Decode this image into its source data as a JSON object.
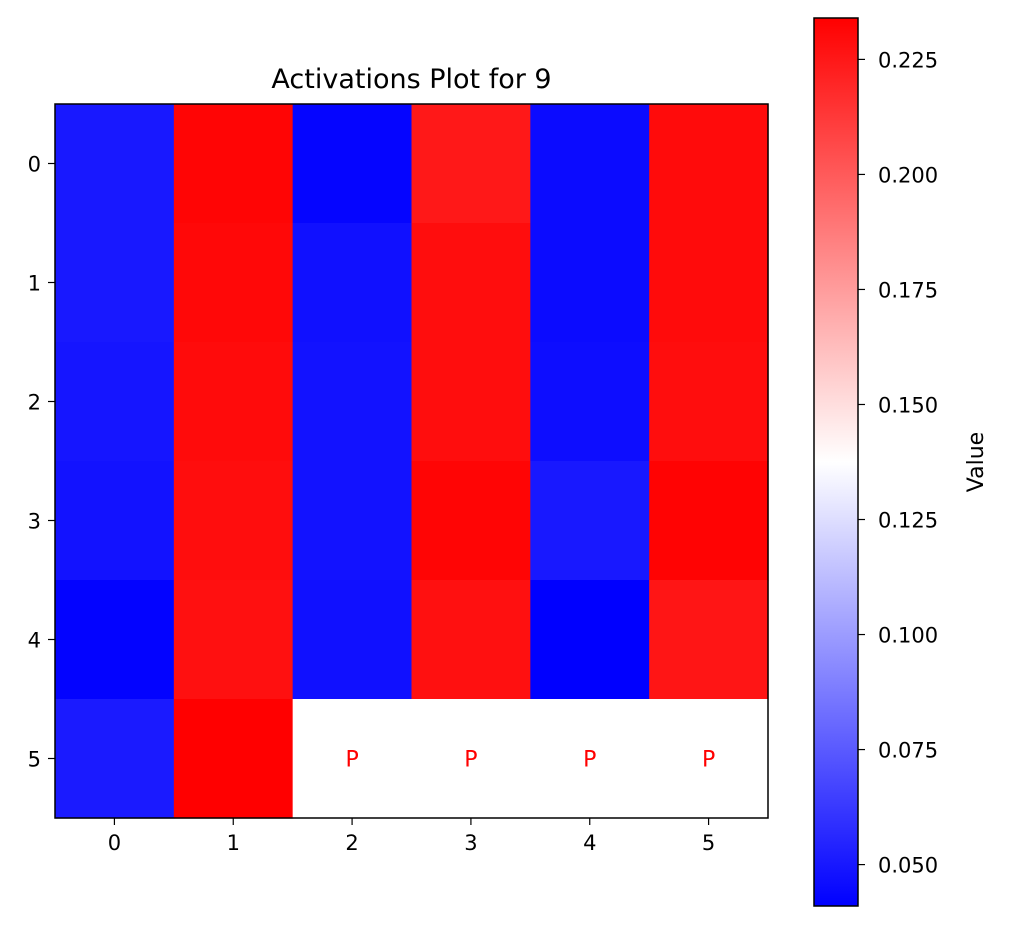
{
  "chart_data": {
    "type": "heatmap",
    "title": "Activations Plot for 9",
    "xlabel": "",
    "ylabel": "",
    "x_ticks": [
      "0",
      "1",
      "2",
      "3",
      "4",
      "5"
    ],
    "y_ticks": [
      "0",
      "1",
      "2",
      "3",
      "4",
      "5"
    ],
    "values": [
      [
        0.05,
        0.232,
        0.043,
        0.225,
        0.045,
        0.23
      ],
      [
        0.05,
        0.231,
        0.047,
        0.229,
        0.045,
        0.23
      ],
      [
        0.049,
        0.23,
        0.048,
        0.229,
        0.046,
        0.229
      ],
      [
        0.048,
        0.229,
        0.048,
        0.232,
        0.05,
        0.233
      ],
      [
        0.042,
        0.228,
        0.047,
        0.228,
        0.041,
        0.226
      ],
      [
        0.051,
        0.234,
        null,
        null,
        null,
        null
      ]
    ],
    "pad_label": "P",
    "pad_color": "#ffffff",
    "pad_text_color": "#ff0000",
    "colormap": "bwr",
    "vmin": 0.041,
    "vmax": 0.234,
    "colorbar": {
      "label": "Value",
      "ticks": [
        "0.050",
        "0.075",
        "0.100",
        "0.125",
        "0.150",
        "0.175",
        "0.200",
        "0.225"
      ]
    }
  }
}
